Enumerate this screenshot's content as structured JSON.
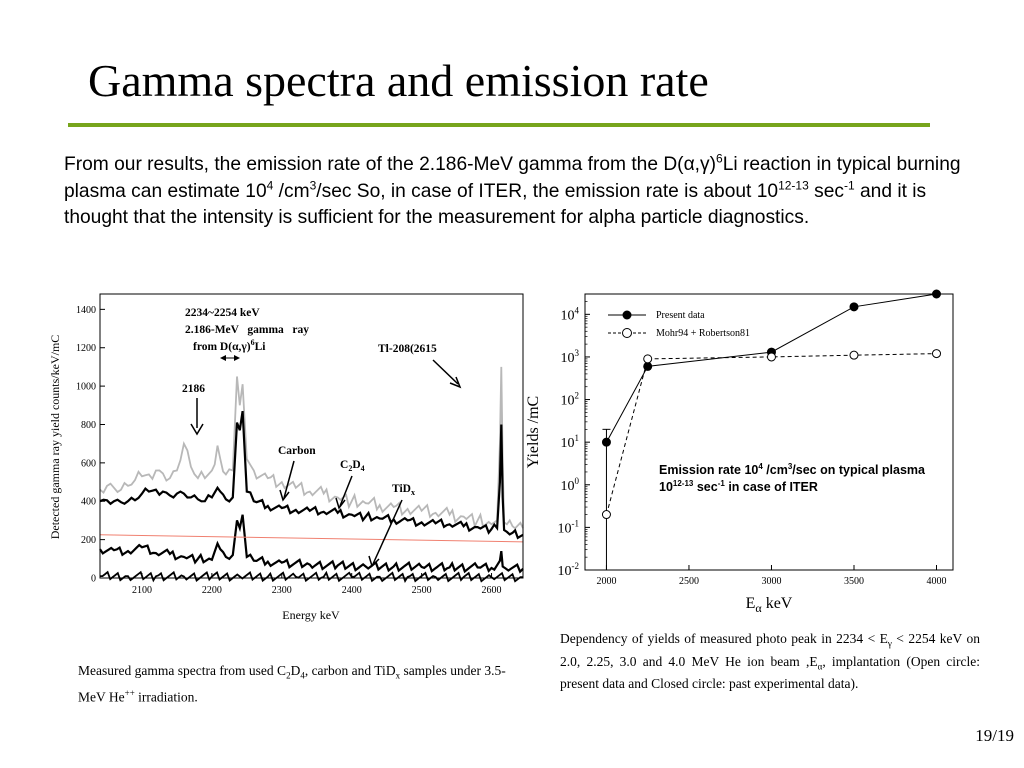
{
  "slide": {
    "title": "Gamma spectra and emission rate",
    "intro": {
      "t1": "From our results, the emission rate of the 2.186-MeV gamma from the D(",
      "greek": "α,γ",
      "t2": ")",
      "sup1": "6",
      "t3": "Li reaction in typical burning plasma can estimate 10",
      "sup2": "4",
      "t4": " /cm",
      "sup3": "3",
      "t5": "/sec So, in case of ITER, the emission rate is about 10",
      "sup4": "12-13",
      "t6": " sec",
      "sup5": "-1",
      "t7": " and it is thought that the intensity is sufficient for the measurement for alpha particle diagnostics."
    },
    "page_number": "19/19"
  },
  "left_caption": {
    "p1": "Measured gamma spectra from used C",
    "sub1": "2",
    "p2": "D",
    "sub2": "4",
    "p3": ", carbon and TiD",
    "sub3": "x",
    "p4": " samples under 3.5-MeV He",
    "sup1": "++",
    "p5": " irradiation."
  },
  "right_caption": {
    "p1": "Dependency of yields of measured photo peak in 2234 < E",
    "sub1": "γ",
    "p2": " < 2254 keV on 2.0, 2.25, 3.0 and 4.0 MeV He ion beam ,E",
    "sub2": "α",
    "p3": ", implantation (Open circle: present data and Closed circle: past experimental data)."
  },
  "chart_data": [
    {
      "type": "line",
      "xlabel": "Energy keV",
      "ylabel": "Detected gamma ray yield counts/keV/mC",
      "xlim": [
        2040,
        2645
      ],
      "ylim": [
        0,
        1480
      ],
      "xticks": [
        2100,
        2200,
        2300,
        2400,
        2500,
        2600
      ],
      "yticks": [
        0,
        200,
        400,
        600,
        800,
        1000,
        1200,
        1400
      ],
      "grid": false,
      "annotations": {
        "range_label": "2234~2254 keV",
        "gamma_l1": "2.186-MeV   gamma   ray",
        "gamma_l2a": "from D(",
        "gamma_l2g": "α,γ",
        "gamma_l2b": ")",
        "gamma_l2s": "6",
        "gamma_l2c": "Li",
        "peak_2186": "2186",
        "tl": "Tl-208(2615",
        "carbon": "Carbon",
        "c2d4_c": "C",
        "c2d4_s1": "2",
        "c2d4_d": "D",
        "c2d4_s2": "4",
        "tid_t": "TiD",
        "tid_s": "x"
      },
      "series": [
        {
          "color": "#b8b8b8",
          "x": [
            2040,
            2050,
            2060,
            2070,
            2080,
            2090,
            2100,
            2110,
            2120,
            2130,
            2140,
            2150,
            2160,
            2170,
            2180,
            2190,
            2200,
            2208,
            2212,
            2220,
            2230,
            2236,
            2240,
            2244,
            2250,
            2260,
            2280,
            2300,
            2320,
            2340,
            2360,
            2380,
            2400,
            2420,
            2440,
            2460,
            2480,
            2500,
            2520,
            2540,
            2560,
            2580,
            2600,
            2608,
            2612,
            2614,
            2616,
            2618,
            2622,
            2630,
            2645
          ],
          "y": [
            460,
            480,
            470,
            460,
            480,
            510,
            530,
            540,
            560,
            545,
            520,
            560,
            700,
            580,
            520,
            520,
            560,
            690,
            620,
            540,
            560,
            1050,
            900,
            1010,
            620,
            560,
            520,
            500,
            470,
            450,
            440,
            420,
            400,
            390,
            380,
            370,
            360,
            350,
            340,
            330,
            320,
            300,
            280,
            300,
            700,
            1100,
            600,
            290,
            280,
            270,
            260
          ]
        },
        {
          "color": "#000000",
          "x": [
            2040,
            2050,
            2060,
            2070,
            2080,
            2090,
            2100,
            2110,
            2120,
            2130,
            2140,
            2150,
            2160,
            2170,
            2180,
            2190,
            2200,
            2208,
            2212,
            2220,
            2230,
            2236,
            2240,
            2244,
            2250,
            2260,
            2280,
            2300,
            2320,
            2340,
            2360,
            2380,
            2400,
            2420,
            2440,
            2460,
            2480,
            2500,
            2520,
            2540,
            2560,
            2580,
            2600,
            2608,
            2612,
            2614,
            2616,
            2618,
            2622,
            2630,
            2645
          ],
          "y": [
            400,
            405,
            400,
            395,
            400,
            405,
            440,
            450,
            460,
            450,
            430,
            440,
            440,
            420,
            410,
            400,
            420,
            470,
            450,
            410,
            420,
            810,
            770,
            870,
            450,
            400,
            375,
            365,
            355,
            350,
            345,
            340,
            330,
            320,
            310,
            305,
            300,
            290,
            285,
            280,
            270,
            265,
            255,
            260,
            500,
            800,
            420,
            250,
            240,
            235,
            225
          ]
        },
        {
          "color": "#000000",
          "x": [
            2040,
            2060,
            2080,
            2100,
            2120,
            2140,
            2160,
            2180,
            2200,
            2208,
            2212,
            2220,
            2230,
            2236,
            2240,
            2244,
            2250,
            2260,
            2280,
            2300,
            2340,
            2380,
            2420,
            2460,
            2500,
            2540,
            2580,
            2600,
            2612,
            2614,
            2616,
            2620,
            2645
          ],
          "y": [
            150,
            145,
            140,
            160,
            130,
            125,
            110,
            100,
            95,
            180,
            150,
            110,
            120,
            300,
            260,
            330,
            110,
            90,
            85,
            80,
            70,
            65,
            60,
            60,
            58,
            55,
            55,
            52,
            90,
            140,
            60,
            50,
            48
          ]
        },
        {
          "color": "#000000",
          "x": [
            2040,
            2080,
            2120,
            2160,
            2200,
            2240,
            2280,
            2320,
            2360,
            2400,
            2440,
            2480,
            2520,
            2560,
            2600,
            2645
          ],
          "y": [
            10,
            10,
            9,
            8,
            8,
            8,
            7,
            7,
            6,
            6,
            6,
            5,
            5,
            5,
            4,
            4
          ]
        },
        {
          "color": "#f08070",
          "x": [
            2040,
            2645
          ],
          "y": [
            225,
            188
          ]
        }
      ]
    },
    {
      "type": "line",
      "xlabel_main": "E",
      "xlabel_sub": "α",
      "xlabel_unit": " keV",
      "ylabel": "Yields /mC",
      "log_y": true,
      "xlim": [
        1870,
        4100
      ],
      "ylim": [
        0.01,
        30000
      ],
      "xticks": [
        2000,
        2500,
        3000,
        3500,
        4000
      ],
      "yticks": [
        {
          "base": "10",
          "exp": "-2",
          "value": 0.01
        },
        {
          "base": "10",
          "exp": "-1",
          "value": 0.1
        },
        {
          "base": "10",
          "exp": "0",
          "value": 1
        },
        {
          "base": "10",
          "exp": "1",
          "value": 10
        },
        {
          "base": "10",
          "exp": "2",
          "value": 100
        },
        {
          "base": "10",
          "exp": "3",
          "value": 1000
        },
        {
          "base": "10",
          "exp": "4",
          "value": 10000
        }
      ],
      "legend": "top-left",
      "note": {
        "l1a": "Emission rate 10",
        "l1s": "4",
        "l1b": " /cm",
        "l1s2": "3",
        "l1c": "/sec on typical plasma",
        "l2a": "10",
        "l2s": "12-13",
        "l2b": " sec",
        "l2s2": "-1",
        "l2c": " in case of ITER"
      },
      "series": [
        {
          "name": "Present data",
          "marker": "filled",
          "line": "solid",
          "x": [
            2000,
            2250,
            3000,
            3500,
            4000
          ],
          "y": [
            10,
            600,
            1300,
            15000,
            30000
          ],
          "err_low": [
            0.01,
            null,
            null,
            null,
            null
          ],
          "err_high": [
            20,
            null,
            null,
            null,
            null
          ]
        },
        {
          "name": "Mohr94 + Robertson81",
          "marker": "open",
          "line": "dashed",
          "x": [
            2000,
            2250,
            3000,
            3500,
            4000
          ],
          "y": [
            0.2,
            900,
            1000,
            1100,
            1200
          ]
        }
      ]
    }
  ]
}
